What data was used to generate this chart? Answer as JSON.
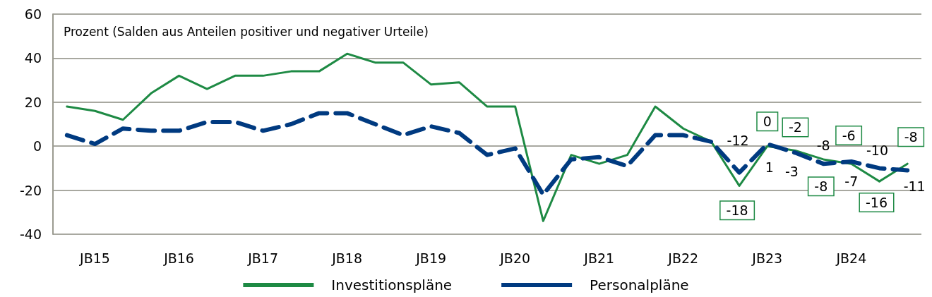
{
  "chart_data": {
    "type": "line",
    "ylabel": "Prozent (Salden aus Anteilen positiver und negativer Urteile)",
    "categories": [
      null,
      "JB15",
      null,
      null,
      "JB16",
      null,
      null,
      "JB17",
      null,
      null,
      "JB18",
      null,
      null,
      "JB19",
      null,
      null,
      "JB20",
      null,
      null,
      "JB21",
      null,
      null,
      "JB22",
      null,
      null,
      "JB23",
      null,
      null,
      "JB24",
      null,
      null
    ],
    "series": [
      {
        "name": "Investitionspläne",
        "color": "#1e8a44",
        "line_style": "solid",
        "values": [
          18,
          16,
          12,
          24,
          32,
          26,
          32,
          32,
          34,
          34,
          42,
          38,
          38,
          28,
          29,
          18,
          18,
          -34,
          -4,
          -8,
          -4,
          18,
          8,
          2,
          -18,
          0,
          -2,
          -6,
          -8,
          -16,
          -8
        ],
        "value_labels": [
          null,
          null,
          null,
          null,
          null,
          null,
          null,
          null,
          null,
          null,
          null,
          null,
          null,
          null,
          null,
          null,
          null,
          null,
          null,
          null,
          null,
          null,
          null,
          null,
          "-18",
          "0",
          "-2",
          "-6",
          "-8",
          "-16",
          "-8"
        ]
      },
      {
        "name": "Personalpläne",
        "color": "#003a80",
        "line_style": "dashed",
        "values": [
          5,
          1,
          8,
          7,
          7,
          11,
          11,
          7,
          10,
          15,
          15,
          10,
          5,
          9,
          6,
          -4,
          -1,
          -22,
          -6,
          -5,
          -9,
          5,
          5,
          2,
          -12,
          1,
          -3,
          -8,
          -7,
          -10,
          -11
        ],
        "value_labels": [
          null,
          null,
          null,
          null,
          null,
          null,
          null,
          null,
          null,
          null,
          null,
          null,
          null,
          null,
          null,
          null,
          null,
          null,
          null,
          null,
          null,
          null,
          null,
          null,
          "-12",
          "1",
          "-3",
          "-8",
          "-7",
          "-10",
          "-11"
        ]
      }
    ],
    "ylim": [
      -40,
      60
    ],
    "yticks": [
      -40,
      -20,
      0,
      20,
      40,
      60
    ],
    "grid": "y",
    "legend": "bottom",
    "marker": "none"
  }
}
